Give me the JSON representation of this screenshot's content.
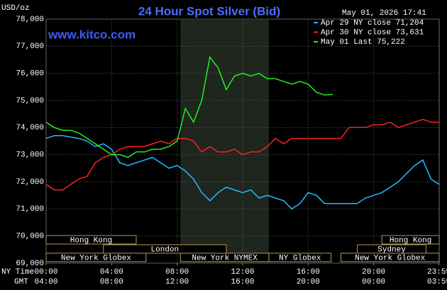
{
  "chart_data": {
    "type": "line",
    "title": "24 Hour Spot Silver (Bid)",
    "website": "www.kitco.com",
    "timestamp": "May 01, 2026 17:41",
    "ylabel": "USD/oz",
    "xlabel": "NY Time",
    "x2label": "GMT",
    "xlim": [
      0,
      24
    ],
    "ylim": [
      69000,
      78000
    ],
    "yticks": [
      {
        "value": 69000,
        "label": "69,000"
      },
      {
        "value": 70000,
        "label": "70,000"
      },
      {
        "value": 71000,
        "label": "71,000"
      },
      {
        "value": 72000,
        "label": "72,000"
      },
      {
        "value": 73000,
        "label": "73,000"
      },
      {
        "value": 74000,
        "label": "74,000"
      },
      {
        "value": 75000,
        "label": "75,000"
      },
      {
        "value": 76000,
        "label": "76,000"
      },
      {
        "value": 77000,
        "label": "77,000"
      },
      {
        "value": 78000,
        "label": "78,000"
      }
    ],
    "xticks": [
      {
        "value": 0,
        "label": "00:00"
      },
      {
        "value": 4,
        "label": "04:00"
      },
      {
        "value": 8,
        "label": "08:00"
      },
      {
        "value": 12,
        "label": "12:00"
      },
      {
        "value": 16,
        "label": "16:00"
      },
      {
        "value": 20,
        "label": "20:00"
      },
      {
        "value": 23.98,
        "label": "23:59"
      }
    ],
    "x2ticks": [
      {
        "value": 0,
        "label": "04:00"
      },
      {
        "value": 4,
        "label": "08:00"
      },
      {
        "value": 8,
        "label": "12:00"
      },
      {
        "value": 12,
        "label": "16:00"
      },
      {
        "value": 16,
        "label": "20:00"
      },
      {
        "value": 20,
        "label": "00:00"
      },
      {
        "value": 23.98,
        "label": "03:59"
      }
    ],
    "grid": true,
    "x": [
      0,
      0.5,
      1,
      1.5,
      2,
      2.5,
      3,
      3.5,
      4,
      4.5,
      5,
      5.5,
      6,
      6.5,
      7,
      7.5,
      8,
      8.5,
      9,
      9.5,
      10,
      10.5,
      11,
      11.5,
      12,
      12.5,
      13,
      13.5,
      14,
      14.5,
      15,
      15.5,
      16,
      16.5,
      17,
      17.5,
      18,
      18.5,
      19,
      19.5,
      20,
      20.5,
      21,
      21.5,
      22,
      22.5,
      23,
      23.5,
      24
    ],
    "series": [
      {
        "name": "Apr 29 NY close 71,204",
        "color": "#22bbff",
        "values": [
          73600,
          73700,
          73700,
          73650,
          73600,
          73500,
          73300,
          73400,
          73200,
          72700,
          72600,
          72700,
          72800,
          72900,
          72700,
          72500,
          72600,
          72400,
          72100,
          71600,
          71300,
          71600,
          71800,
          71700,
          71600,
          71700,
          71400,
          71500,
          71400,
          71300,
          71000,
          71200,
          71600,
          71500,
          71200,
          71200,
          71200,
          71200,
          71200,
          71400,
          71500,
          71600,
          71800,
          72000,
          72300,
          72600,
          72800,
          72100,
          71900
        ]
      },
      {
        "name": "Apr 30 NY close 73,631",
        "color": "#ff2020",
        "values": [
          71900,
          71700,
          71700,
          71900,
          72100,
          72200,
          72700,
          72900,
          73000,
          73200,
          73300,
          73300,
          73300,
          73400,
          73500,
          73400,
          73600,
          73600,
          73500,
          73100,
          73300,
          73100,
          73100,
          73200,
          73000,
          73100,
          73100,
          73300,
          73600,
          73400,
          73600,
          73600,
          73600,
          73600,
          73600,
          73600,
          73600,
          74000,
          74000,
          74000,
          74100,
          74100,
          74200,
          74000,
          74100,
          74200,
          74300,
          74200,
          74200
        ]
      },
      {
        "name": "May 01 Last 75,222",
        "color": "#22ee22",
        "values": [
          74200,
          74000,
          73900,
          73900,
          73800,
          73600,
          73400,
          73200,
          73000,
          73000,
          72900,
          73100,
          73100,
          73200,
          73200,
          73300,
          73500,
          74700,
          74200,
          75000,
          76600,
          76200,
          75400,
          75900,
          76000,
          75900,
          76000,
          75800,
          75800,
          75700,
          75600,
          75700,
          75600,
          75300,
          75200,
          75222,
          null,
          null,
          null,
          null,
          null,
          null,
          null,
          null,
          null,
          null,
          null,
          null,
          null
        ]
      }
    ],
    "highlight_session": "New York NYMEX",
    "sessions": [
      [
        {
          "label": "Hong Kong",
          "start": 0,
          "end": 5.5
        },
        {
          "label": "Hong Kong",
          "start": 20.5,
          "end": 24
        }
      ],
      [
        {
          "label": "London",
          "start": 3.5,
          "end": 11
        },
        {
          "label": "Sydney",
          "start": 19,
          "end": 23.2
        }
      ],
      [
        {
          "label": "New York Globex",
          "start": 0,
          "end": 6.1
        },
        {
          "label": "New York NYMEX",
          "start": 8.2,
          "end": 13.6
        },
        {
          "label": "NY Globex",
          "start": 13.6,
          "end": 17.4
        },
        {
          "label": "New York Globex",
          "start": 18,
          "end": 24
        }
      ]
    ]
  }
}
